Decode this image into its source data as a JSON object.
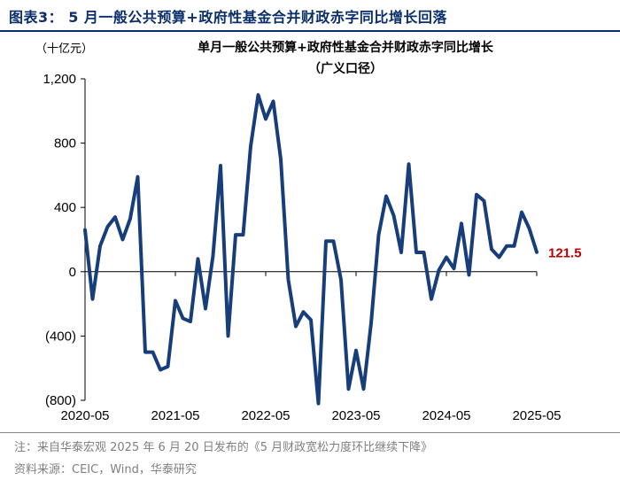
{
  "figure_title": "图表3：  5 月一般公共预算+政府性基金合并财政赤字同比增长回落",
  "unit_label": "（十亿元）",
  "chart_title_line1": "单月一般公共预算+政府性基金合并财政赤字同比增长",
  "chart_title_line2": "（广义口径）",
  "note": "注：来自华泰宏观 2025 年 6 月 20 日发布的《5 月财政宽松力度环比继续下降》",
  "source": "资料来源：CEIC，Wind，华泰研究",
  "colors": {
    "line": "#173d7a",
    "title": "#0a2f6b",
    "annotation": "#c00000",
    "axis": "#000000",
    "footer": "#7f7f7f"
  },
  "chart_data": {
    "type": "line",
    "x_tick_labels": [
      "2020-05",
      "2021-05",
      "2022-05",
      "2023-05",
      "2024-05",
      "2025-05"
    ],
    "y_tick_labels": [
      "1,200",
      "800",
      "400",
      "0",
      "(400)",
      "(800)"
    ],
    "y_ticks": [
      1200,
      800,
      400,
      0,
      -400,
      -800
    ],
    "ylim": [
      -800,
      1200
    ],
    "grid": false,
    "series": [
      {
        "x": [
          "2020-05",
          "2020-06",
          "2020-07",
          "2020-08",
          "2020-09",
          "2020-10",
          "2020-11",
          "2020-12",
          "2021-01",
          "2021-02",
          "2021-03",
          "2021-04",
          "2021-05",
          "2021-06",
          "2021-07",
          "2021-08",
          "2021-09",
          "2021-10",
          "2021-11",
          "2021-12",
          "2022-01",
          "2022-02",
          "2022-03",
          "2022-04",
          "2022-05",
          "2022-06",
          "2022-07",
          "2022-08",
          "2022-09",
          "2022-10",
          "2022-11",
          "2022-12",
          "2023-01",
          "2023-02",
          "2023-03",
          "2023-04",
          "2023-05",
          "2023-06",
          "2023-07",
          "2023-08",
          "2023-09",
          "2023-10",
          "2023-11",
          "2023-12",
          "2024-01",
          "2024-02",
          "2024-03",
          "2024-04",
          "2024-05",
          "2024-06",
          "2024-07",
          "2024-08",
          "2024-09",
          "2024-10",
          "2024-11",
          "2024-12",
          "2025-01",
          "2025-02",
          "2025-03",
          "2025-04",
          "2025-05"
        ],
        "values": [
          260,
          -170,
          160,
          280,
          340,
          200,
          330,
          590,
          -500,
          -500,
          -610,
          -590,
          -180,
          -290,
          -310,
          80,
          -230,
          100,
          660,
          -400,
          230,
          230,
          780,
          1100,
          950,
          1060,
          700,
          -50,
          -340,
          -250,
          -300,
          -820,
          190,
          190,
          -50,
          -730,
          -490,
          -730,
          -320,
          230,
          470,
          350,
          120,
          670,
          120,
          120,
          -170,
          10,
          90,
          20,
          300,
          -20,
          480,
          440,
          140,
          90,
          160,
          160,
          370,
          270,
          121.5
        ]
      }
    ],
    "annotation": {
      "text": "121.5",
      "value": 121.5
    }
  }
}
